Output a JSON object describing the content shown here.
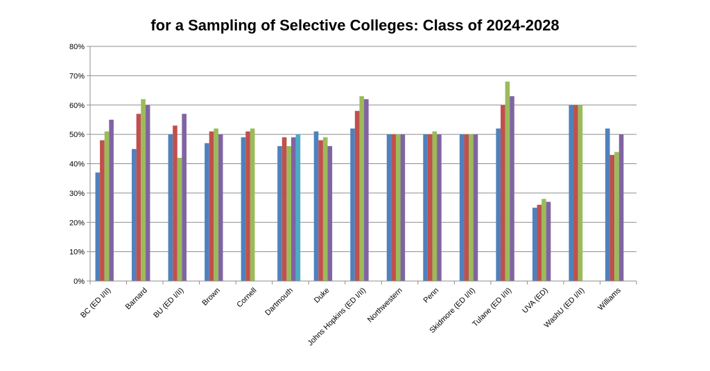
{
  "chart_data": {
    "type": "bar",
    "title_line1": "",
    "title": "for a Sampling of Selective Colleges: Class of 2024-2028",
    "xlabel": "",
    "ylabel": "",
    "ylim": [
      0,
      0.8
    ],
    "y_ticks": [
      "0%",
      "10%",
      "20%",
      "30%",
      "40%",
      "50%",
      "60%",
      "70%",
      "80%"
    ],
    "grid": true,
    "legend": "none",
    "categories": [
      "BC (ED I/II)",
      "Barnard",
      "BU (ED I/II)",
      "Brown",
      "Cornell",
      "Dartmouth",
      "Duke",
      "Johns Hopkins (ED I/II)",
      "Northwestern",
      "Penn",
      "Skidmore (ED I/II)",
      "Tulane (ED I/II)",
      "UVA (ED)",
      "WashU (ED I/II)",
      "Williams"
    ],
    "series": [
      {
        "color": "#4F81BD",
        "values": [
          0.37,
          0.45,
          0.5,
          0.47,
          0.49,
          0.46,
          0.51,
          0.52,
          0.5,
          0.5,
          0.5,
          0.52,
          0.25,
          0.6,
          0.52
        ]
      },
      {
        "color": "#C0504D",
        "values": [
          0.48,
          0.57,
          0.53,
          0.51,
          0.51,
          0.49,
          0.48,
          0.58,
          0.5,
          0.5,
          0.5,
          0.6,
          0.26,
          0.6,
          0.43
        ]
      },
      {
        "color": "#9BBB59",
        "values": [
          0.51,
          0.62,
          0.42,
          0.52,
          0.52,
          0.46,
          0.49,
          0.63,
          0.5,
          0.51,
          0.5,
          0.68,
          0.28,
          0.6,
          0.44
        ]
      },
      {
        "color": "#8064A2",
        "values": [
          0.55,
          0.6,
          0.57,
          0.5,
          null,
          0.49,
          0.46,
          0.62,
          0.5,
          0.5,
          0.5,
          0.63,
          0.27,
          null,
          0.5
        ]
      },
      {
        "color": "#4BACC6",
        "values": [
          null,
          null,
          null,
          null,
          null,
          0.5,
          null,
          null,
          null,
          null,
          null,
          null,
          null,
          null,
          null
        ]
      }
    ]
  }
}
